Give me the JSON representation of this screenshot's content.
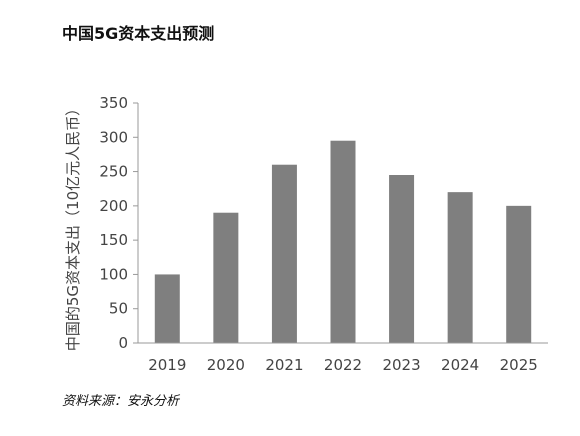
{
  "title": "中国5G资本支出预测",
  "source": "资料来源：安永分析",
  "chart_data": {
    "type": "bar",
    "title": "中国5G资本支出预测",
    "ylabel": "中国的5G资本支出（10亿元人民币）",
    "xlabel": "",
    "categories": [
      "2019",
      "2020",
      "2021",
      "2022",
      "2023",
      "2024",
      "2025"
    ],
    "values": [
      100,
      190,
      260,
      295,
      245,
      220,
      200
    ],
    "ylim": [
      0,
      350
    ],
    "yticks": [
      "0",
      "50",
      "100",
      "150",
      "200",
      "250",
      "300",
      "350"
    ],
    "grid": false,
    "bar_color": "#7f7f7f",
    "axis_color": "#999999"
  }
}
